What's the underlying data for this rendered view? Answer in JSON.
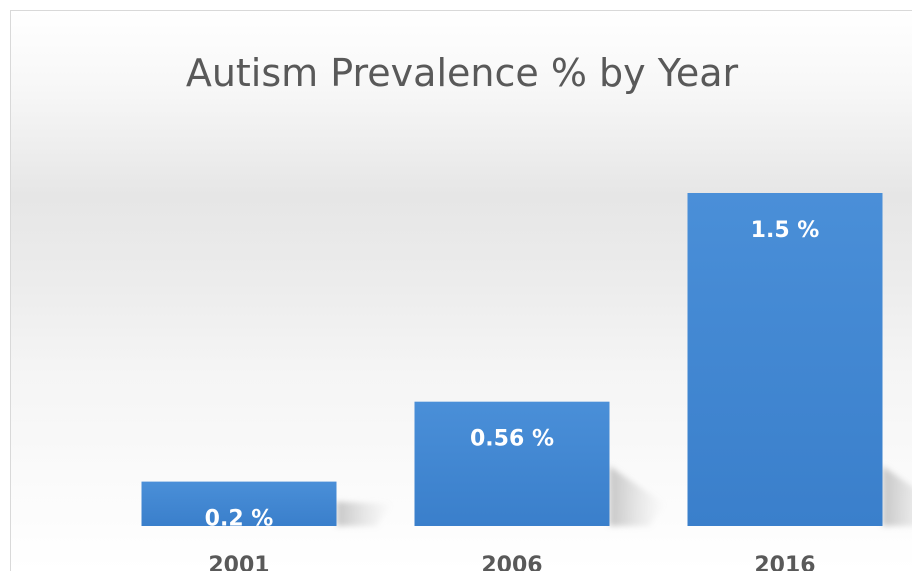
{
  "chart_data": {
    "type": "bar",
    "title": "Autism Prevalence % by Year",
    "categories": [
      "2001",
      "2006",
      "2016"
    ],
    "values": [
      0.2,
      0.56,
      1.5
    ],
    "data_labels": [
      "0.2 %",
      "0.56 %",
      "1.5 %"
    ],
    "xlabel": "",
    "ylabel": "",
    "grid": false,
    "legend": "none",
    "bar_color": "#4a8fd8",
    "bar_color_dark": "#3a7fcb"
  }
}
